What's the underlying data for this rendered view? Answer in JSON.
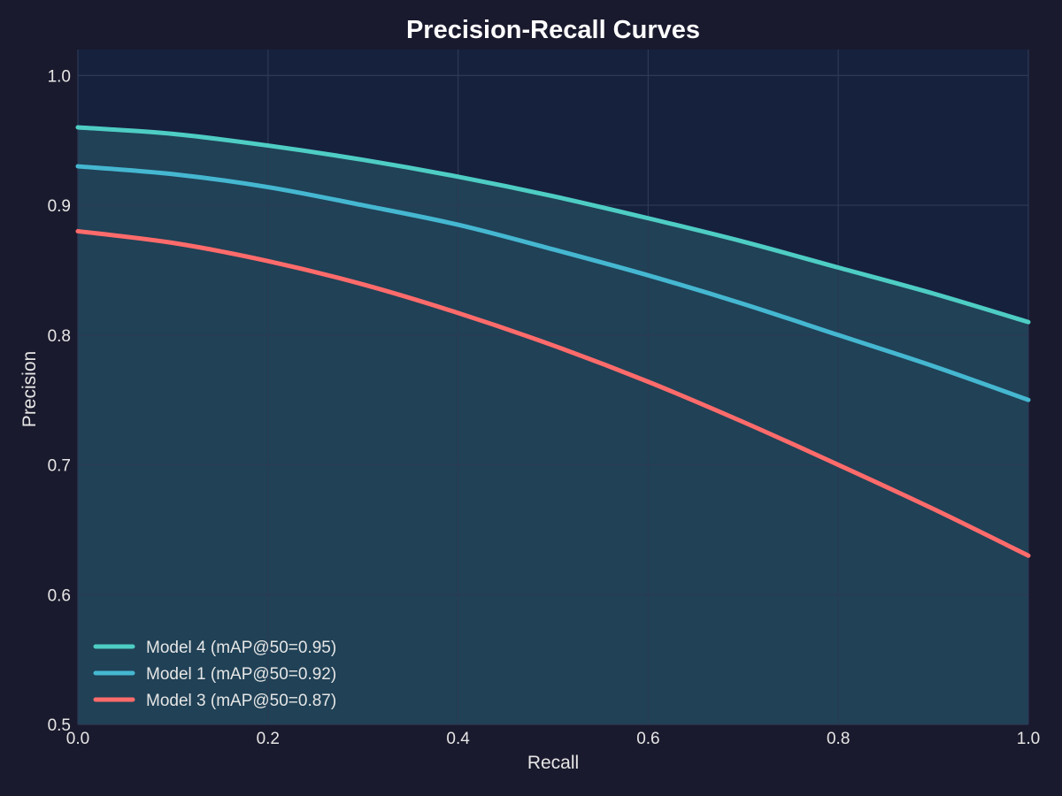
{
  "chart_data": {
    "type": "line",
    "title": "Precision-Recall Curves",
    "xlabel": "Recall",
    "ylabel": "Precision",
    "xlim": [
      0.0,
      1.0
    ],
    "ylim": [
      0.5,
      1.02
    ],
    "grid": true,
    "legend_position": "bottom-left",
    "x_ticks": [
      0.0,
      0.2,
      0.4,
      0.6,
      0.8,
      1.0
    ],
    "x_tick_labels": [
      "0.0",
      "0.2",
      "0.4",
      "0.6",
      "0.8",
      "1.0"
    ],
    "y_ticks": [
      0.5,
      0.6,
      0.7,
      0.8,
      0.9,
      1.0
    ],
    "y_tick_labels": [
      "0.5",
      "0.6",
      "0.7",
      "0.8",
      "0.9",
      "1.0"
    ],
    "x": [
      0.0,
      0.1,
      0.2,
      0.3,
      0.4,
      0.5,
      0.6,
      0.7,
      0.8,
      0.9,
      1.0
    ],
    "series": [
      {
        "name": "Model 4 (mAP@50=0.95)",
        "color": "#4ecdc4",
        "values": [
          0.96,
          0.955,
          0.946,
          0.935,
          0.922,
          0.907,
          0.89,
          0.872,
          0.852,
          0.832,
          0.81
        ]
      },
      {
        "name": "Model 1 (mAP@50=0.92)",
        "color": "#45b7d1",
        "values": [
          0.93,
          0.924,
          0.914,
          0.9,
          0.885,
          0.866,
          0.846,
          0.824,
          0.8,
          0.776,
          0.75
        ]
      },
      {
        "name": "Model 3 (mAP@50=0.87)",
        "color": "#ff6b6b",
        "values": [
          0.88,
          0.871,
          0.857,
          0.839,
          0.817,
          0.792,
          0.764,
          0.733,
          0.7,
          0.666,
          0.63
        ]
      }
    ],
    "colors": {
      "page_background": "#1a1a2e",
      "plot_background": "#16213e",
      "fill_area": "#22475a",
      "grid": "#2c3a55",
      "text": "#e6e6e6",
      "title": "#ffffff"
    }
  }
}
